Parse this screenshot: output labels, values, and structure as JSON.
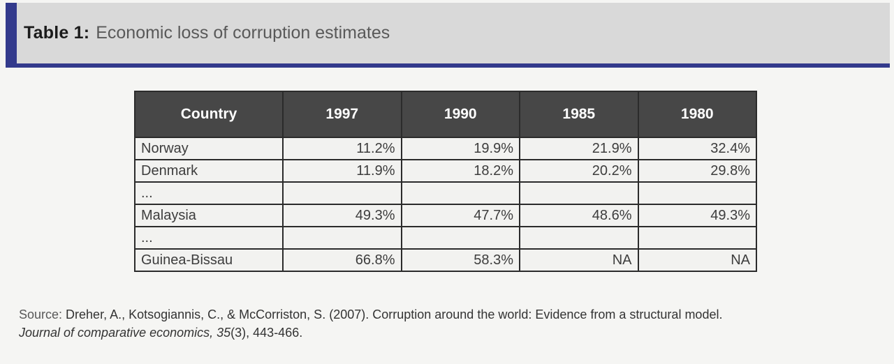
{
  "title": {
    "label": "Table 1:",
    "text": "Economic loss of corruption estimates"
  },
  "chart_data": {
    "type": "table",
    "title": "Economic loss of corruption estimates",
    "columns": [
      "Country",
      "1997",
      "1990",
      "1985",
      "1980"
    ],
    "rows": [
      {
        "country": "Norway",
        "values": [
          "11.2%",
          "19.9%",
          "21.9%",
          "32.4%"
        ]
      },
      {
        "country": "Denmark",
        "values": [
          "11.9%",
          "18.2%",
          "20.2%",
          "29.8%"
        ]
      },
      {
        "country": "...",
        "values": [
          "",
          "",
          "",
          ""
        ]
      },
      {
        "country": "Malaysia",
        "values": [
          "49.3%",
          "47.7%",
          "48.6%",
          "49.3%"
        ]
      },
      {
        "country": "...",
        "values": [
          "",
          "",
          "",
          ""
        ]
      },
      {
        "country": "Guinea-Bissau",
        "values": [
          "66.8%",
          "58.3%",
          "NA",
          "NA"
        ]
      }
    ]
  },
  "source": {
    "label": "Source:",
    "text_before_italic": "Dreher, A., Kotsogiannis, C., & McCorriston, S. (2007). Corruption around the world: Evidence from a structural model. ",
    "italic_text": "Journal of comparative economics, 35",
    "text_after_italic": "(3), 443-466."
  },
  "colors": {
    "accent_blue": "#333a8c",
    "band_gray": "#d9d9d9",
    "table_header_bg": "#474747",
    "cell_bg": "#f2f2f0",
    "border": "#2b2b2b"
  }
}
